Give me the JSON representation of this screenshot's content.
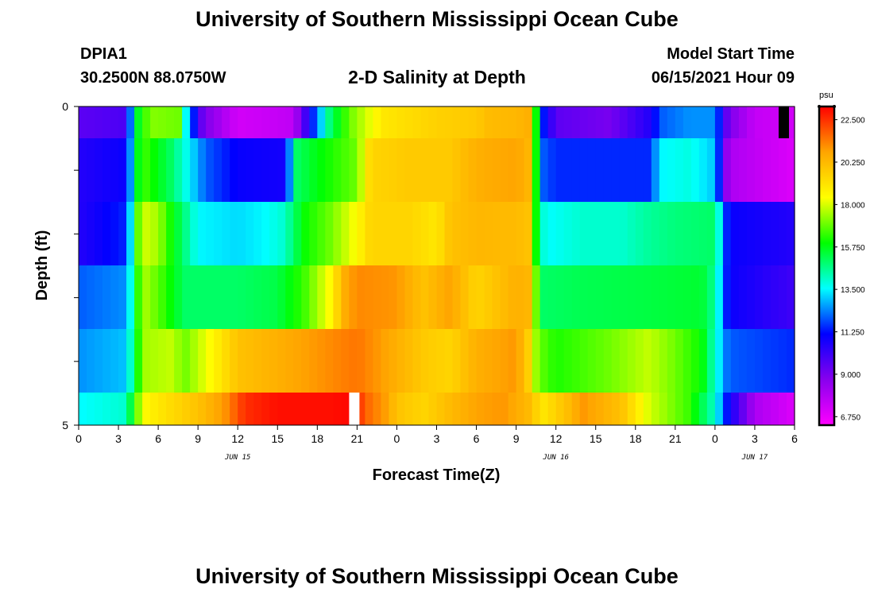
{
  "page": {
    "title_top": "University of Southern Mississippi Ocean Cube",
    "title_bottom": "University of Southern Mississippi Ocean Cube",
    "station": "DPIA1",
    "coords": "30.2500N  88.0750W",
    "plot_title": "2-D Salinity at Depth",
    "model_start_label": "Model Start Time",
    "model_start_value": "06/15/2021 Hour 09"
  },
  "chart_data": {
    "type": "heatmap",
    "title": "2-D Salinity at Depth",
    "xlabel": "Forecast Time(Z)",
    "ylabel": "Depth (ft)",
    "units": "psu",
    "x_hours_range": [
      0,
      54
    ],
    "y_range_ft": [
      0,
      5
    ],
    "y_tick_labels": [
      "0",
      "5"
    ],
    "x_tick_labels": [
      "0",
      "3",
      "6",
      "9",
      "12",
      "15",
      "18",
      "21",
      "0",
      "3",
      "6",
      "9",
      "12",
      "15",
      "18",
      "21",
      "0",
      "3",
      "6"
    ],
    "date_labels": [
      {
        "text": "JUN 15",
        "hour": 12
      },
      {
        "text": "JUN 16",
        "hour": 36
      },
      {
        "text": "JUN 17",
        "hour": 51
      }
    ],
    "colorbar": {
      "min": 6.3,
      "max": 23.2,
      "ticks": [
        "22.500",
        "20.250",
        "18.000",
        "15.750",
        "13.500",
        "11.250",
        "9.000",
        "6.750"
      ],
      "colors": [
        "#ff00ff",
        "#8800ee",
        "#0000ff",
        "#00ffff",
        "#00ff00",
        "#ffff00",
        "#ffa500",
        "#ff0000"
      ]
    },
    "layer_keyframes": [
      {
        "layer": "0-0.5 ft",
        "kf": [
          [
            0,
            9.5
          ],
          [
            3.6,
            9.8
          ],
          [
            4.2,
            14.5
          ],
          [
            4.6,
            16
          ],
          [
            5.5,
            17.2
          ],
          [
            7.5,
            17
          ],
          [
            8.2,
            13
          ],
          [
            9.4,
            9
          ],
          [
            12,
            7.2
          ],
          [
            16.2,
            7.6
          ],
          [
            17.5,
            11
          ],
          [
            19,
            15
          ],
          [
            20.5,
            17
          ],
          [
            23,
            19
          ],
          [
            27,
            19.6
          ],
          [
            30,
            19.8
          ],
          [
            31,
            20.2
          ],
          [
            33,
            20.3
          ],
          [
            34,
            20.5
          ],
          [
            34.2,
            19
          ],
          [
            34.4,
            17
          ],
          [
            34.6,
            15
          ],
          [
            35,
            11.5
          ],
          [
            36,
            9.5
          ],
          [
            40,
            9
          ],
          [
            43,
            10.5
          ],
          [
            44,
            12
          ],
          [
            46,
            12.5
          ],
          [
            48,
            12.5
          ],
          [
            49,
            9
          ],
          [
            51,
            7.5
          ],
          [
            54,
            7.2
          ]
        ]
      },
      {
        "layer": "0.5-1.5 ft",
        "kf": [
          [
            0,
            10.5
          ],
          [
            3.7,
            11
          ],
          [
            4.3,
            15.5
          ],
          [
            5,
            16.5
          ],
          [
            7,
            15
          ],
          [
            9.6,
            12
          ],
          [
            12,
            11
          ],
          [
            15.6,
            10.8
          ],
          [
            16.4,
            15
          ],
          [
            18,
            15.8
          ],
          [
            21,
            17
          ],
          [
            22,
            19.5
          ],
          [
            25,
            19.8
          ],
          [
            28,
            19.8
          ],
          [
            30,
            20.5
          ],
          [
            33,
            20.8
          ],
          [
            34,
            20.3
          ],
          [
            34.5,
            16
          ],
          [
            35,
            12
          ],
          [
            36,
            11.5
          ],
          [
            43,
            11.5
          ],
          [
            44,
            13.5
          ],
          [
            46,
            13.8
          ],
          [
            48,
            13
          ],
          [
            49,
            8
          ],
          [
            54,
            7
          ]
        ]
      },
      {
        "layer": "1.5-2.5 ft",
        "kf": [
          [
            0,
            10.5
          ],
          [
            3.7,
            11.5
          ],
          [
            4.2,
            15.8
          ],
          [
            4.8,
            18
          ],
          [
            6,
            17.5
          ],
          [
            7,
            16
          ],
          [
            9,
            13.5
          ],
          [
            12,
            13.2
          ],
          [
            14,
            13.5
          ],
          [
            15.5,
            14
          ],
          [
            17,
            16
          ],
          [
            19,
            17
          ],
          [
            21,
            18.5
          ],
          [
            22,
            19.5
          ],
          [
            25,
            19.5
          ],
          [
            27,
            19
          ],
          [
            28,
            20
          ],
          [
            30,
            20.3
          ],
          [
            33,
            20.2
          ],
          [
            34,
            20
          ],
          [
            34.5,
            16
          ],
          [
            35.2,
            13.5
          ],
          [
            38,
            14
          ],
          [
            41,
            14
          ],
          [
            43,
            14.5
          ],
          [
            45,
            14.8
          ],
          [
            48,
            15
          ],
          [
            49,
            11
          ],
          [
            54,
            10.5
          ]
        ]
      },
      {
        "layer": "2.5-3.5 ft",
        "kf": [
          [
            0,
            12
          ],
          [
            3.7,
            12.5
          ],
          [
            4.3,
            16
          ],
          [
            5,
            17.5
          ],
          [
            6,
            16.8
          ],
          [
            8,
            15
          ],
          [
            12,
            15
          ],
          [
            15,
            15.3
          ],
          [
            17,
            16.5
          ],
          [
            19,
            18.5
          ],
          [
            20,
            20.5
          ],
          [
            21,
            21.2
          ],
          [
            24,
            21
          ],
          [
            26,
            20
          ],
          [
            28,
            20.8
          ],
          [
            30,
            19.5
          ],
          [
            33,
            20.5
          ],
          [
            34,
            20.3
          ],
          [
            34.5,
            17
          ],
          [
            35,
            15
          ],
          [
            38,
            15.2
          ],
          [
            42,
            15.3
          ],
          [
            47,
            15.5
          ],
          [
            48,
            14.5
          ],
          [
            49,
            11
          ],
          [
            54,
            10
          ]
        ]
      },
      {
        "layer": "3.5-4.5 ft",
        "kf": [
          [
            0,
            12.5
          ],
          [
            3.7,
            13
          ],
          [
            4.2,
            15.5
          ],
          [
            5,
            17.5
          ],
          [
            7,
            17.8
          ],
          [
            8,
            17
          ],
          [
            10,
            18.5
          ],
          [
            12,
            20
          ],
          [
            15,
            20.5
          ],
          [
            18,
            21
          ],
          [
            21,
            21.5
          ],
          [
            24,
            20.5
          ],
          [
            26,
            19.8
          ],
          [
            28,
            19.5
          ],
          [
            30,
            20.5
          ],
          [
            33,
            21
          ],
          [
            34,
            19.5
          ],
          [
            34.6,
            17
          ],
          [
            36,
            16.2
          ],
          [
            40,
            17
          ],
          [
            43,
            17.8
          ],
          [
            45,
            17
          ],
          [
            47,
            16
          ],
          [
            48,
            14
          ],
          [
            49,
            12
          ],
          [
            54,
            11.5
          ]
        ]
      },
      {
        "layer": "4.5-5 ft",
        "kf": [
          [
            0,
            13.5
          ],
          [
            3.6,
            14
          ],
          [
            4.2,
            16.5
          ],
          [
            5,
            18.5
          ],
          [
            6,
            19
          ],
          [
            9,
            20
          ],
          [
            11,
            21
          ],
          [
            12.5,
            22.5
          ],
          [
            15,
            23
          ],
          [
            19,
            23
          ],
          [
            20.5,
            23.1
          ],
          [
            22,
            21.5
          ],
          [
            23,
            21
          ],
          [
            24,
            20
          ],
          [
            26,
            19.5
          ],
          [
            28,
            20.2
          ],
          [
            30,
            20.8
          ],
          [
            32,
            21
          ],
          [
            34,
            20.2
          ],
          [
            35,
            19
          ],
          [
            37,
            20.2
          ],
          [
            38,
            21
          ],
          [
            41,
            20
          ],
          [
            43,
            18
          ],
          [
            46,
            16.5
          ],
          [
            48,
            14
          ],
          [
            49,
            11
          ],
          [
            51,
            8
          ],
          [
            54,
            7
          ]
        ]
      }
    ],
    "missing_cells": [
      {
        "hour": 20.4,
        "layer": "4.5-5 ft",
        "color": "#ffffff"
      },
      {
        "hour": 52.8,
        "layer": "0-0.5 ft",
        "color": "#000000"
      }
    ]
  }
}
